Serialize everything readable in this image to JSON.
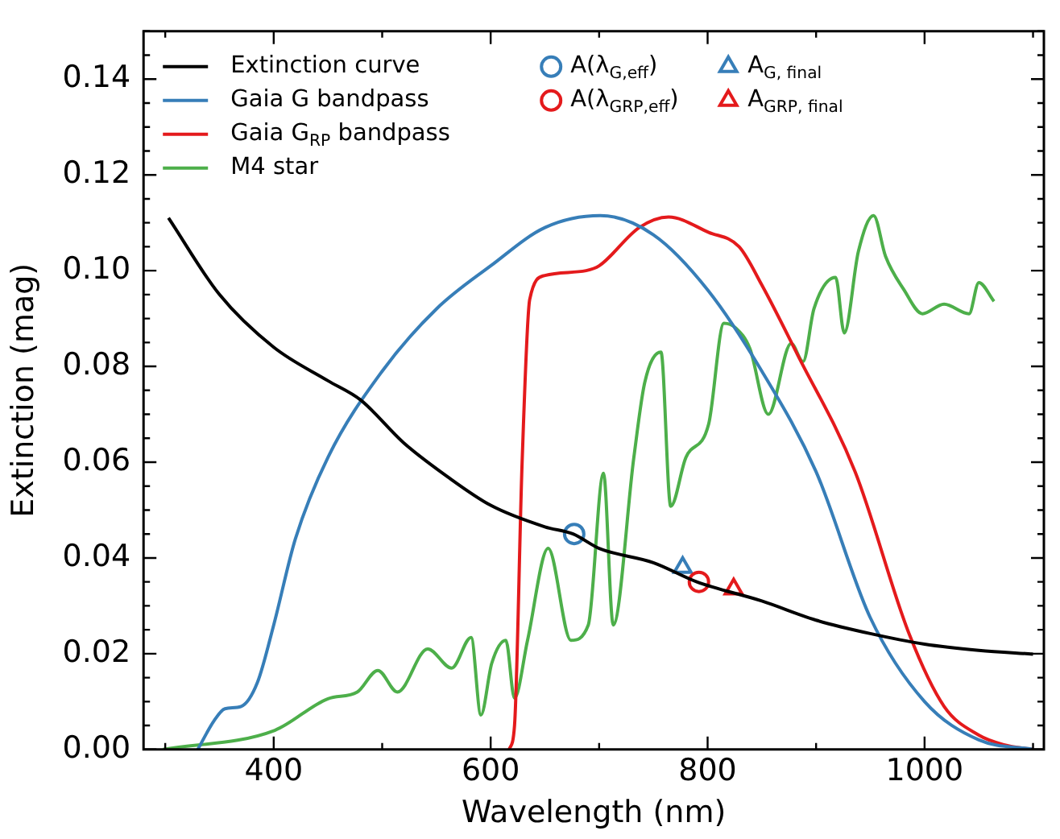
{
  "chart_data": {
    "type": "line",
    "xlabel": "Wavelength (nm)",
    "ylabel": "Extinction (mag)",
    "xlim": [
      280,
      1110
    ],
    "ylim": [
      0,
      0.15
    ],
    "xticks": [
      {
        "value": 300,
        "label": null
      },
      400,
      {
        "value": 500,
        "label": null
      },
      600,
      {
        "value": 700,
        "label": null
      },
      800,
      {
        "value": 900,
        "label": null
      },
      1000,
      {
        "value": 1100,
        "label": null
      }
    ],
    "yticks": [
      {
        "value": 0,
        "label": "0.00"
      },
      {
        "value": 0.005,
        "label": null
      },
      {
        "value": 0.01,
        "label": null
      },
      {
        "value": 0.015,
        "label": null
      },
      {
        "value": 0.02,
        "label": "0.02"
      },
      {
        "value": 0.025,
        "label": null
      },
      {
        "value": 0.03,
        "label": null
      },
      {
        "value": 0.035,
        "label": null
      },
      {
        "value": 0.04,
        "label": "0.04"
      },
      {
        "value": 0.045,
        "label": null
      },
      {
        "value": 0.05,
        "label": null
      },
      {
        "value": 0.055,
        "label": null
      },
      {
        "value": 0.06,
        "label": "0.06"
      },
      {
        "value": 0.065,
        "label": null
      },
      {
        "value": 0.07,
        "label": null
      },
      {
        "value": 0.075,
        "label": null
      },
      {
        "value": 0.08,
        "label": "0.08"
      },
      {
        "value": 0.085,
        "label": null
      },
      {
        "value": 0.09,
        "label": null
      },
      {
        "value": 0.095,
        "label": null
      },
      {
        "value": 0.1,
        "label": "0.10"
      },
      {
        "value": 0.105,
        "label": null
      },
      {
        "value": 0.11,
        "label": null
      },
      {
        "value": 0.115,
        "label": null
      },
      {
        "value": 0.12,
        "label": "0.12"
      },
      {
        "value": 0.125,
        "label": null
      },
      {
        "value": 0.13,
        "label": null
      },
      {
        "value": 0.135,
        "label": null
      },
      {
        "value": 0.14,
        "label": "0.14"
      },
      {
        "value": 0.145,
        "label": null
      },
      {
        "value": 0.15,
        "label": null
      }
    ],
    "legend": "top left",
    "marker": "none",
    "line_style": "solid",
    "series": [
      {
        "name": "Extinction curve",
        "color": "#000000",
        "x": [
          303,
          350,
          400,
          450,
          480,
          520,
          560,
          600,
          650,
          676,
          700,
          750,
          790,
          850,
          900,
          950,
          1000,
          1050,
          1100
        ],
        "values": [
          0.111,
          0.095,
          0.084,
          0.077,
          0.073,
          0.064,
          0.057,
          0.051,
          0.0465,
          0.045,
          0.042,
          0.039,
          0.035,
          0.031,
          0.027,
          0.0242,
          0.022,
          0.0207,
          0.0199
        ]
      },
      {
        "name": "Gaia G bandpass",
        "color": "#377eb8",
        "x": [
          330,
          345,
          355,
          370,
          385,
          400,
          420,
          450,
          500,
          550,
          600,
          650,
          701,
          750,
          800,
          850,
          900,
          950,
          1000,
          1050,
          1100
        ],
        "values": [
          0,
          0.006,
          0.0085,
          0.009,
          0.014,
          0.026,
          0.044,
          0.061,
          0.079,
          0.092,
          0.101,
          0.109,
          0.1115,
          0.1075,
          0.096,
          0.079,
          0.058,
          0.0275,
          0.01,
          0.002,
          0
        ]
      },
      {
        "name": "Gaia G$_{RP}$ bandpass",
        "color": "#e41a1c",
        "x": [
          617,
          622,
          629,
          636,
          650,
          688,
          700,
          737,
          764,
          801,
          829,
          850,
          883,
          936,
          986,
          1018,
          1050,
          1073,
          1100
        ],
        "values": [
          0,
          0.005,
          0.06,
          0.094,
          0.099,
          0.1,
          0.101,
          0.109,
          0.1112,
          0.108,
          0.105,
          0.097,
          0.0824,
          0.058,
          0.024,
          0.009,
          0.003,
          0.001,
          0
        ]
      },
      {
        "name": "M4 star",
        "color": "#4daf4a",
        "x": [
          298,
          401,
          450,
          477,
          496,
          514,
          542,
          564,
          582,
          591,
          601,
          614,
          622,
          634,
          653,
          674,
          690,
          704,
          713,
          732,
          742,
          757,
          766,
          780,
          801,
          815,
          826,
          839,
          856,
          877,
          888,
          898,
          918,
          926,
          939,
          953,
          964,
          981,
          998,
          1018,
          1041,
          1050,
          1064
        ],
        "values": [
          0,
          0.004,
          0.0106,
          0.012,
          0.0165,
          0.012,
          0.021,
          0.017,
          0.0234,
          0.0072,
          0.018,
          0.0228,
          0.0107,
          0.0228,
          0.042,
          0.0228,
          0.026,
          0.0577,
          0.026,
          0.061,
          0.0766,
          0.083,
          0.0508,
          0.061,
          0.068,
          0.089,
          0.088,
          0.0837,
          0.07,
          0.0848,
          0.081,
          0.092,
          0.0986,
          0.087,
          0.104,
          0.1115,
          0.103,
          0.096,
          0.091,
          0.093,
          0.091,
          0.0975,
          0.0936
        ]
      },
      {
        "name": "A(λ$_{G,eff}$)",
        "color": "#377eb8",
        "type": "scatter",
        "marker": "circle",
        "x": [
          677
        ],
        "values": [
          0.045
        ]
      },
      {
        "name": "A(λ$_{GRP,eff}$)",
        "color": "#e41a1c",
        "type": "scatter",
        "marker": "circle",
        "x": [
          792
        ],
        "values": [
          0.035
        ]
      },
      {
        "name": "A$_{G, final}$",
        "color": "#377eb8",
        "type": "scatter",
        "marker": "triangle",
        "x": [
          777
        ],
        "values": [
          0.038
        ]
      },
      {
        "name": "A$_{GRP, final}$",
        "color": "#e41a1c",
        "type": "scatter",
        "marker": "triangle",
        "x": [
          824
        ],
        "values": [
          0.0335
        ]
      }
    ]
  }
}
